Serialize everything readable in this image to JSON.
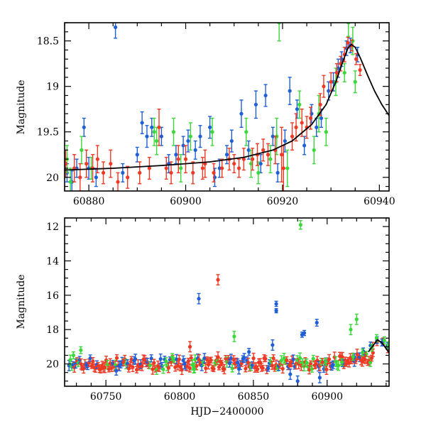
{
  "colors": {
    "blue": "#1f5fd6",
    "green": "#3ad83a",
    "red": "#ee3a24",
    "model": "#000000"
  },
  "chart_data": [
    {
      "type": "scatter",
      "ylabel": "Magnitude",
      "xlabel": "",
      "xlim": [
        60875,
        60942
      ],
      "ylim": [
        20.15,
        18.3
      ],
      "xticks": [
        60880,
        60900,
        60920,
        60940
      ],
      "yticks": [
        18.5,
        19,
        19.5,
        20
      ],
      "ytick_labels": [
        "18.5",
        "19",
        "19.5",
        "20"
      ],
      "model_curve": {
        "x": [
          60875,
          60885,
          60895,
          60905,
          60912,
          60918,
          60922,
          60926,
          60929,
          60931,
          60932.5,
          60933.5,
          60934.2,
          60935,
          60936,
          60937.5,
          60939,
          60940.5,
          60942
        ],
        "y": [
          19.92,
          19.9,
          19.87,
          19.83,
          19.78,
          19.7,
          19.6,
          19.42,
          19.2,
          18.95,
          18.72,
          18.58,
          18.54,
          18.57,
          18.68,
          18.87,
          19.05,
          19.2,
          19.32
        ]
      },
      "series": [
        {
          "color": "blue",
          "points": [
            [
              60875.5,
              19.95,
              0.1
            ],
            [
              60876.5,
              20.05,
              0.12
            ],
            [
              60877.5,
              19.9,
              0.1
            ],
            [
              60879,
              19.45,
              0.1
            ],
            [
              60880,
              19.9,
              0.12
            ],
            [
              60881.5,
              20.0,
              0.1
            ],
            [
              60885.5,
              18.35,
              0.12
            ],
            [
              60887,
              19.95,
              0.1
            ],
            [
              60890,
              19.75,
              0.08
            ],
            [
              60891,
              19.4,
              0.12
            ],
            [
              60892,
              19.55,
              0.12
            ],
            [
              60893,
              19.45,
              0.1
            ],
            [
              60895,
              19.55,
              0.1
            ],
            [
              60896.5,
              19.85,
              0.1
            ],
            [
              60898,
              19.75,
              0.1
            ],
            [
              60899.5,
              19.65,
              0.1
            ],
            [
              60900.5,
              19.6,
              0.12
            ],
            [
              60902,
              19.7,
              0.1
            ],
            [
              60903,
              19.55,
              0.12
            ],
            [
              60905,
              19.45,
              0.12
            ],
            [
              60906,
              20.0,
              0.1
            ],
            [
              60907,
              19.9,
              0.1
            ],
            [
              60908.5,
              19.75,
              0.1
            ],
            [
              60909.5,
              19.6,
              0.12
            ],
            [
              60911.5,
              19.3,
              0.15
            ],
            [
              60913,
              19.7,
              0.1
            ],
            [
              60914.5,
              19.2,
              0.15
            ],
            [
              60915.5,
              19.85,
              0.1
            ],
            [
              60916.5,
              19.1,
              0.12
            ],
            [
              60918,
              19.55,
              0.1
            ],
            [
              60919,
              19.95,
              0.1
            ],
            [
              60920.5,
              19.6,
              0.12
            ],
            [
              60921.5,
              19.05,
              0.15
            ],
            [
              60923,
              19.25,
              0.1
            ],
            [
              60924.5,
              19.65,
              0.1
            ],
            [
              60926,
              19.3,
              0.1
            ],
            [
              60927,
              19.45,
              0.1
            ],
            [
              60928,
              19.35,
              0.1
            ],
            [
              60929.5,
              19.05,
              0.1
            ],
            [
              60930.5,
              18.95,
              0.1
            ],
            [
              60931.5,
              18.8,
              0.1
            ],
            [
              60932.2,
              18.7,
              0.08
            ],
            [
              60933.2,
              18.58,
              0.08
            ],
            [
              60934,
              18.55,
              0.08
            ],
            [
              60935.5,
              18.65,
              0.08
            ]
          ]
        },
        {
          "color": "green",
          "points": [
            [
              60875.5,
              19.8,
              0.15
            ],
            [
              60876.2,
              20.05,
              0.15
            ],
            [
              60878.5,
              19.7,
              0.15
            ],
            [
              60880.5,
              19.9,
              0.12
            ],
            [
              60893.5,
              19.5,
              0.15
            ],
            [
              60894,
              19.6,
              0.15
            ],
            [
              60897.5,
              19.5,
              0.15
            ],
            [
              60899,
              19.9,
              0.15
            ],
            [
              60901,
              19.55,
              0.15
            ],
            [
              60905.5,
              19.5,
              0.15
            ],
            [
              60912.5,
              19.5,
              0.15
            ],
            [
              60913.5,
              19.85,
              0.15
            ],
            [
              60915,
              19.95,
              0.12
            ],
            [
              60917.5,
              19.8,
              0.15
            ],
            [
              60918.8,
              19.55,
              0.2
            ],
            [
              60919.3,
              18.3,
              0.2
            ],
            [
              60921,
              19.9,
              0.2
            ],
            [
              60923.5,
              19.2,
              0.15
            ],
            [
              60926.5,
              19.7,
              0.15
            ],
            [
              60927.5,
              19.3,
              0.2
            ],
            [
              60929,
              19.5,
              0.15
            ],
            [
              60931,
              18.95,
              0.15
            ],
            [
              60932.8,
              18.85,
              0.1
            ],
            [
              60933.6,
              18.3,
              0.15
            ],
            [
              60934.5,
              18.5,
              0.15
            ],
            [
              60935,
              18.95,
              0.12
            ]
          ]
        },
        {
          "color": "red",
          "points": [
            [
              60875.2,
              19.85,
              0.15
            ],
            [
              60877,
              19.9,
              0.15
            ],
            [
              60878.2,
              20.0,
              0.15
            ],
            [
              60879.5,
              19.85,
              0.15
            ],
            [
              60880.8,
              19.9,
              0.15
            ],
            [
              60881.8,
              19.8,
              0.15
            ],
            [
              60883,
              19.95,
              0.12
            ],
            [
              60884.5,
              19.85,
              0.15
            ],
            [
              60886,
              20.05,
              0.1
            ],
            [
              60888,
              20.0,
              0.12
            ],
            [
              60890.5,
              19.95,
              0.12
            ],
            [
              60892.5,
              19.9,
              0.12
            ],
            [
              60894.5,
              19.45,
              0.2
            ],
            [
              60896,
              19.9,
              0.12
            ],
            [
              60897,
              19.95,
              0.12
            ],
            [
              60898.5,
              19.8,
              0.15
            ],
            [
              60900,
              19.8,
              0.15
            ],
            [
              60901.5,
              19.95,
              0.12
            ],
            [
              60903.5,
              19.9,
              0.12
            ],
            [
              60904,
              19.85,
              0.15
            ],
            [
              60905.8,
              19.95,
              0.1
            ],
            [
              60907.5,
              19.9,
              0.1
            ],
            [
              60909,
              19.8,
              0.12
            ],
            [
              60910,
              19.85,
              0.1
            ],
            [
              60911,
              19.9,
              0.1
            ],
            [
              60912,
              19.8,
              0.12
            ],
            [
              60913.8,
              19.8,
              0.12
            ],
            [
              60914.8,
              19.75,
              0.12
            ],
            [
              60916,
              19.7,
              0.12
            ],
            [
              60917,
              19.75,
              0.12
            ],
            [
              60918.5,
              19.7,
              0.15
            ],
            [
              60919.8,
              19.75,
              0.3
            ],
            [
              60920.2,
              19.9,
              0.25
            ],
            [
              60922,
              19.55,
              0.15
            ],
            [
              60922.8,
              19.45,
              0.15
            ],
            [
              60924,
              19.4,
              0.15
            ],
            [
              60925,
              19.45,
              0.12
            ],
            [
              60925.8,
              19.35,
              0.12
            ],
            [
              60927.8,
              19.2,
              0.12
            ],
            [
              60928.5,
              19.0,
              0.12
            ],
            [
              60930,
              18.95,
              0.1
            ],
            [
              60931.2,
              18.85,
              0.1
            ],
            [
              60932,
              18.75,
              0.08
            ],
            [
              60932.8,
              18.65,
              0.08
            ],
            [
              60933.5,
              18.52,
              0.06
            ],
            [
              60934.3,
              18.55,
              0.06
            ],
            [
              60935.2,
              18.7,
              0.06
            ],
            [
              60936,
              18.82,
              0.06
            ]
          ]
        }
      ]
    },
    {
      "type": "scatter",
      "ylabel": "Magnitude",
      "xlabel": "HJD−2400000",
      "xlim": [
        60722,
        60942
      ],
      "ylim": [
        21.3,
        11.5
      ],
      "xticks": [
        60750,
        60800,
        60850,
        60900
      ],
      "yticks": [
        12,
        14,
        16,
        18,
        20
      ],
      "ytick_labels": [
        "12",
        "14",
        "16",
        "18",
        "20"
      ],
      "outliers": [
        {
          "color": "green",
          "x": 60882,
          "y": 11.9,
          "err": 0.25
        },
        {
          "color": "red",
          "x": 60826,
          "y": 15.1,
          "err": 0.3
        },
        {
          "color": "blue",
          "x": 60813,
          "y": 16.2,
          "err": 0.3
        },
        {
          "color": "blue",
          "x": 60865.5,
          "y": 16.5,
          "err": 0.15
        },
        {
          "color": "blue",
          "x": 60865.5,
          "y": 16.9,
          "err": 0.12
        },
        {
          "color": "blue",
          "x": 60893,
          "y": 17.6,
          "err": 0.2
        },
        {
          "color": "blue",
          "x": 60883,
          "y": 18.3,
          "err": 0.15
        },
        {
          "color": "blue",
          "x": 60884.5,
          "y": 18.2,
          "err": 0.15
        },
        {
          "color": "green",
          "x": 60837,
          "y": 18.4,
          "err": 0.3
        },
        {
          "color": "green",
          "x": 60920,
          "y": 17.4,
          "err": 0.3
        },
        {
          "color": "green",
          "x": 60916,
          "y": 18.0,
          "err": 0.3
        },
        {
          "color": "blue",
          "x": 60863,
          "y": 18.9,
          "err": 0.3
        },
        {
          "color": "blue",
          "x": 60895,
          "y": 20.8,
          "err": 0.3
        },
        {
          "color": "blue",
          "x": 60880,
          "y": 21.0,
          "err": 0.3
        },
        {
          "color": "blue",
          "x": 60875,
          "y": 20.6,
          "err": 0.3
        },
        {
          "color": "blue",
          "x": 60757,
          "y": 20.4,
          "err": 0.25
        },
        {
          "color": "green",
          "x": 60733,
          "y": 19.2,
          "err": 0.2
        },
        {
          "color": "green",
          "x": 60728,
          "y": 19.5,
          "err": 0.2
        },
        {
          "color": "red",
          "x": 60807,
          "y": 19.0,
          "err": 0.3
        },
        {
          "color": "red",
          "x": 60826,
          "y": 19.6,
          "err": 0.3
        },
        {
          "color": "blue",
          "x": 60847,
          "y": 19.3,
          "err": 0.2
        },
        {
          "color": "green",
          "x": 60795,
          "y": 19.6,
          "err": 0.2
        },
        {
          "color": "green",
          "x": 60810,
          "y": 20.3,
          "err": 0.2
        }
      ],
      "baseline": {
        "x_range": [
          60725,
          60932
        ],
        "y_center": 20.0,
        "scatter": 0.35,
        "err": 0.25
      },
      "rise": {
        "x": [
          60900,
          60910,
          60918,
          60925,
          60930,
          60934,
          60938,
          60941
        ],
        "y": [
          20.0,
          19.85,
          19.7,
          19.4,
          18.95,
          18.6,
          18.7,
          19.0
        ]
      }
    }
  ]
}
